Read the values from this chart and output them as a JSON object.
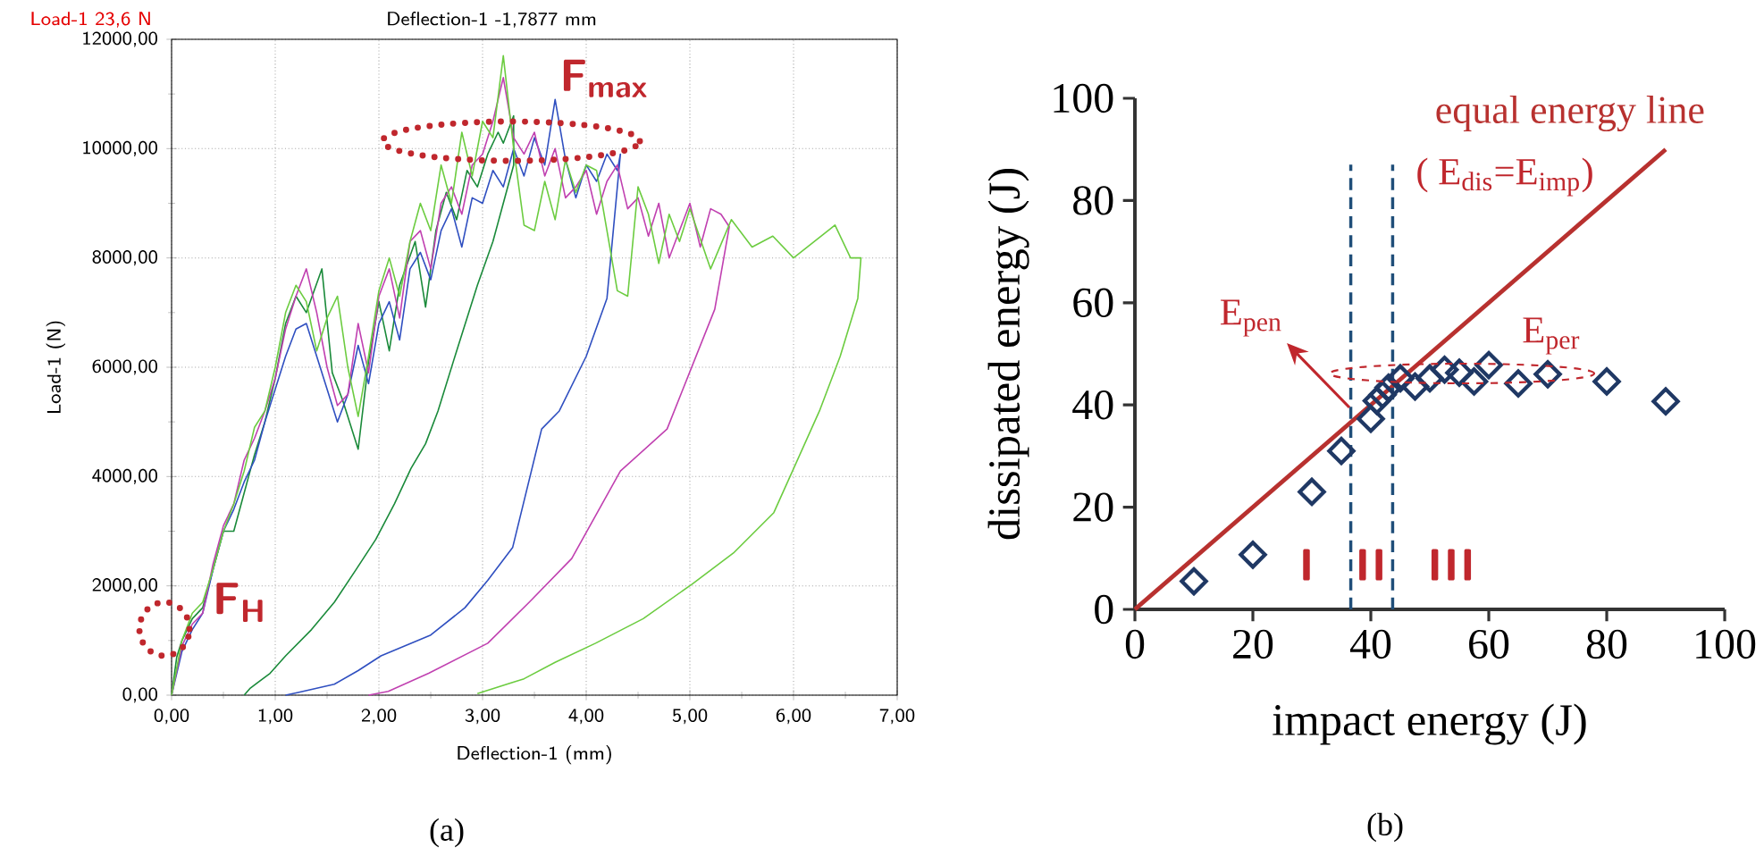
{
  "chart_data": [
    {
      "type": "line",
      "xlabel": "Deflection-1 (mm)",
      "ylabel": "Load-1 (N)",
      "grid": true,
      "xlim": [
        0,
        7
      ],
      "ylim": [
        0,
        12000
      ],
      "xticks": [
        {
          "value": 0,
          "label": "0,00"
        },
        {
          "value": 1,
          "label": "1,00"
        },
        {
          "value": 2,
          "label": "2,00"
        },
        {
          "value": 3,
          "label": "3,00"
        },
        {
          "value": 4,
          "label": "4,00"
        },
        {
          "value": 5,
          "label": "5,00"
        },
        {
          "value": 6,
          "label": "6,00"
        },
        {
          "value": 7,
          "label": "7,00"
        }
      ],
      "yticks": [
        {
          "value": 0,
          "label": "0,00"
        },
        {
          "value": 2000,
          "label": "2000,00"
        },
        {
          "value": 4000,
          "label": "4000,00"
        },
        {
          "value": 6000,
          "label": "6000,00"
        },
        {
          "value": 8000,
          "label": "8000,00"
        },
        {
          "value": 10000,
          "label": "10000,00"
        },
        {
          "value": 12000,
          "label": "12000,00"
        }
      ],
      "series": [
        {
          "color": "#1a8a3a",
          "x": [
            0,
            0.05,
            0.1,
            0.2,
            0.3,
            0.4,
            0.5,
            0.6,
            0.7,
            0.8,
            0.9,
            1.0,
            1.1,
            1.2,
            1.3,
            1.45,
            1.55,
            1.65,
            1.75,
            1.8,
            1.9,
            2.0,
            2.1,
            2.2,
            2.35,
            2.45,
            2.55,
            2.65,
            2.75,
            2.85,
            2.95,
            3.05,
            3.15,
            3.2,
            3.3,
            3.3,
            3.2,
            3.1,
            2.95,
            2.75,
            2.57,
            2.45,
            2.31,
            2.15,
            1.97,
            1.78,
            1.57,
            1.35,
            1.1,
            0.95,
            0.76,
            0.7
          ],
          "values": [
            0,
            700,
            1000,
            1400,
            1600,
            2300,
            3000,
            3000,
            3700,
            4400,
            5000,
            5800,
            6800,
            7300,
            7000,
            7800,
            5900,
            5400,
            4800,
            4500,
            6100,
            7200,
            6300,
            7500,
            8300,
            7100,
            8500,
            9200,
            8700,
            9600,
            9300,
            9900,
            10300,
            10100,
            10600,
            9700,
            9000,
            8300,
            7500,
            6300,
            5200,
            4600,
            4150,
            3500,
            2850,
            2300,
            1700,
            1200,
            720,
            400,
            130,
            0
          ]
        },
        {
          "color": "#2f4fc0",
          "x": [
            0,
            0.1,
            0.2,
            0.3,
            0.4,
            0.5,
            0.6,
            0.7,
            0.8,
            0.9,
            1.0,
            1.1,
            1.2,
            1.3,
            1.4,
            1.5,
            1.6,
            1.7,
            1.8,
            1.9,
            2.0,
            2.1,
            2.2,
            2.3,
            2.4,
            2.5,
            2.6,
            2.7,
            2.8,
            2.9,
            3.0,
            3.1,
            3.2,
            3.3,
            3.4,
            3.5,
            3.6,
            3.7,
            3.8,
            3.9,
            4.0,
            4.1,
            4.2,
            4.3,
            4.33,
            4.2,
            4.0,
            3.74,
            3.57,
            3.29,
            3.05,
            2.83,
            2.5,
            2.02,
            1.8,
            1.57,
            1.22,
            1.1
          ],
          "values": [
            0,
            800,
            1200,
            1500,
            2300,
            3000,
            3400,
            3900,
            4300,
            5000,
            5600,
            6200,
            6700,
            6800,
            6200,
            5600,
            5000,
            5500,
            6400,
            5700,
            6800,
            7200,
            6500,
            7800,
            8100,
            7600,
            8500,
            8900,
            8200,
            9100,
            9000,
            9600,
            9300,
            10000,
            9500,
            10200,
            9700,
            10900,
            9800,
            9100,
            9700,
            9400,
            9900,
            9600,
            9900,
            7260,
            6200,
            5200,
            4870,
            2700,
            2100,
            1600,
            1100,
            720,
            450,
            200,
            50,
            0
          ]
        },
        {
          "color": "#c040b0",
          "x": [
            0,
            0.1,
            0.2,
            0.3,
            0.4,
            0.5,
            0.6,
            0.7,
            0.8,
            0.9,
            1.0,
            1.1,
            1.2,
            1.3,
            1.4,
            1.5,
            1.6,
            1.7,
            1.8,
            1.9,
            2.0,
            2.1,
            2.2,
            2.3,
            2.4,
            2.5,
            2.6,
            2.7,
            2.8,
            2.9,
            3.0,
            3.1,
            3.2,
            3.3,
            3.4,
            3.5,
            3.6,
            3.7,
            3.8,
            3.9,
            4.0,
            4.1,
            4.2,
            4.3,
            4.4,
            4.5,
            4.6,
            4.7,
            4.8,
            4.9,
            5.0,
            5.1,
            5.2,
            5.3,
            5.38,
            5.24,
            4.78,
            4.33,
            3.86,
            3.45,
            3.05,
            2.48,
            2.09,
            1.9
          ],
          "values": [
            0,
            900,
            1300,
            1500,
            2400,
            3100,
            3500,
            4300,
            4700,
            5200,
            5800,
            6700,
            7300,
            7800,
            7000,
            6000,
            5300,
            5500,
            6800,
            5900,
            7300,
            7800,
            6900,
            8300,
            8500,
            7800,
            9000,
            9300,
            8800,
            9700,
            9900,
            10500,
            11300,
            10200,
            9900,
            10300,
            9500,
            10000,
            9100,
            9300,
            9600,
            8800,
            9400,
            9700,
            8900,
            9100,
            8400,
            9000,
            8000,
            8500,
            9000,
            8200,
            8900,
            8800,
            8570,
            7060,
            4870,
            4100,
            2500,
            1700,
            950,
            400,
            70,
            0
          ]
        },
        {
          "color": "#6ccc40",
          "x": [
            0,
            0.1,
            0.2,
            0.3,
            0.4,
            0.5,
            0.6,
            0.7,
            0.8,
            0.9,
            1.0,
            1.1,
            1.2,
            1.3,
            1.4,
            1.5,
            1.6,
            1.7,
            1.8,
            1.9,
            2.0,
            2.1,
            2.2,
            2.3,
            2.4,
            2.5,
            2.6,
            2.7,
            2.8,
            2.9,
            3.0,
            3.1,
            3.2,
            3.3,
            3.4,
            3.5,
            3.6,
            3.7,
            3.8,
            3.9,
            4.0,
            4.1,
            4.2,
            4.3,
            4.4,
            4.5,
            4.6,
            4.7,
            4.8,
            4.9,
            5.0,
            5.2,
            5.4,
            5.6,
            5.8,
            6.0,
            6.2,
            6.4,
            6.55,
            6.65,
            6.62,
            6.45,
            6.25,
            5.81,
            5.42,
            5.02,
            4.55,
            4.09,
            3.7,
            3.4,
            2.95
          ],
          "values": [
            0,
            1000,
            1500,
            1700,
            2300,
            3000,
            3500,
            4100,
            4900,
            5200,
            6000,
            7000,
            7500,
            7200,
            6300,
            6900,
            7300,
            6000,
            5100,
            6200,
            7400,
            8000,
            7300,
            8300,
            9000,
            8500,
            9700,
            9000,
            10300,
            9500,
            10500,
            10200,
            11700,
            10000,
            8600,
            8500,
            9400,
            8700,
            9800,
            9200,
            9700,
            9600,
            8500,
            7400,
            7300,
            9300,
            8800,
            7900,
            8800,
            8300,
            8900,
            7800,
            8700,
            8200,
            8400,
            8000,
            8300,
            8600,
            8000,
            8000,
            7260,
            6200,
            5200,
            3340,
            2600,
            2030,
            1400,
            950,
            600,
            300,
            30
          ]
        }
      ],
      "annotations": [
        "Load-1  23,6 N",
        "Deflection-1  -1,7877 mm",
        "F$_{max}$",
        "F$_{H}$",
        "(a)"
      ]
    },
    {
      "type": "scatter",
      "xlabel": "impact energy (J)",
      "ylabel": "dissipated energy (J)",
      "xlim": [
        0,
        100
      ],
      "ylim": [
        0,
        100
      ],
      "xticks": [
        0,
        20,
        40,
        60,
        80,
        100
      ],
      "yticks": [
        0,
        20,
        40,
        60,
        80,
        100
      ],
      "series": [
        {
          "type": "line",
          "name": "equal energy line",
          "color": "#b8312f",
          "x": [
            0,
            90
          ],
          "values": [
            0,
            90
          ]
        },
        {
          "type": "scatter",
          "marker": "diamond",
          "color": "#1f3864",
          "x": [
            10,
            20,
            30,
            35,
            40,
            41,
            42,
            43,
            45,
            47.5,
            50,
            52.5,
            55,
            57.5,
            60,
            65,
            70,
            80,
            90
          ],
          "values": [
            5.5,
            10.7,
            23,
            31,
            37.3,
            40.8,
            42,
            43.4,
            45.2,
            43.6,
            45.2,
            46.9,
            46.3,
            44.6,
            47.8,
            44.2,
            46,
            44.6,
            40.7
          ]
        }
      ],
      "ref_lines": [
        {
          "axis": "x",
          "value": 36.6,
          "color": "#1f4e79",
          "line_style": "dashed"
        },
        {
          "axis": "x",
          "value": 43.7,
          "color": "#1f4e79",
          "line_style": "dashed"
        }
      ],
      "annotations": [
        "( E$_{dis}$=E$_{imp}$)",
        "E$_{pen}$",
        "E$_{per}$",
        "I",
        "II",
        "III",
        "(b)"
      ]
    }
  ]
}
